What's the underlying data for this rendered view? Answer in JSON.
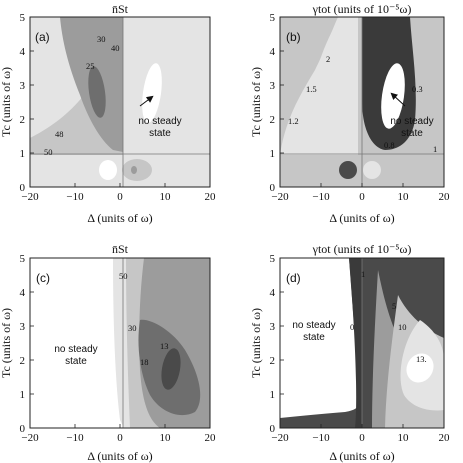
{
  "colors": {
    "c0": "#ffffff",
    "c1": "#e4e4e4",
    "c2": "#c6c6c6",
    "c3": "#9c9c9c",
    "c4": "#6e6e6e",
    "c5": "#4a4a4a",
    "c6": "#3a3a3a"
  },
  "chart_data": [
    {
      "type": "contour",
      "panel_label": "(a)",
      "title": "n̄St",
      "xlabel": "Δ (units of ω)",
      "ylabel": "Tc (units of ω)",
      "xlim": [
        -20,
        20
      ],
      "ylim": [
        0,
        5
      ],
      "xticks": [
        "−20",
        "−10",
        "0",
        "10",
        "20"
      ],
      "yticks": [
        "0",
        "1",
        "2",
        "3",
        "4",
        "5"
      ],
      "contour_labels": [
        {
          "text": "30",
          "x": -7.2,
          "y": 4.55
        },
        {
          "text": "40",
          "x": -3.5,
          "y": 4.3
        },
        {
          "text": "25",
          "x": -6.2,
          "y": 3.35
        },
        {
          "text": "48",
          "x": -15.8,
          "y": 1.5
        },
        {
          "text": "50",
          "x": -17.2,
          "y": 1.1
        }
      ],
      "annotation": "no steady state",
      "annotation_arrow_to": {
        "x": 6.5,
        "y": 3.55
      }
    },
    {
      "type": "contour",
      "panel_label": "(b)",
      "title": "γtot (units of 10⁻⁵ω)",
      "xlabel": "Δ (units of ω)",
      "ylabel": "Tc (units of ω)",
      "xlim": [
        -20,
        20
      ],
      "ylim": [
        0,
        5
      ],
      "xticks": [
        "−20",
        "−10",
        "0",
        "10",
        "20"
      ],
      "yticks": [
        "0",
        "1",
        "2",
        "3",
        "4",
        "5"
      ],
      "contour_labels": [
        {
          "text": "2",
          "x": -7.7,
          "y": 3.95
        },
        {
          "text": "1.5",
          "x": -12.5,
          "y": 3.0
        },
        {
          "text": "1.2",
          "x": -17.0,
          "y": 2.3
        },
        {
          "text": "0.3",
          "x": 12.0,
          "y": 3.05
        },
        {
          "text": "0.8",
          "x": 5.5,
          "y": 1.3
        },
        {
          "text": "1",
          "x": 17.0,
          "y": 1.15
        }
      ],
      "annotation": "no steady state",
      "annotation_arrow_to": {
        "x": 7.0,
        "y": 3.1
      }
    },
    {
      "type": "contour",
      "panel_label": "(c)",
      "title": "n̄St",
      "xlabel": "Δ (units of ω)",
      "ylabel": "Tc (units of ω)",
      "xlim": [
        -20,
        20
      ],
      "ylim": [
        0,
        5
      ],
      "xticks": [
        "−20",
        "−10",
        "0",
        "10",
        "20"
      ],
      "yticks": [
        "0",
        "1",
        "2",
        "3",
        "4",
        "5"
      ],
      "contour_labels": [
        {
          "text": "50",
          "x": 3.0,
          "y": 4.35
        },
        {
          "text": "30",
          "x": 5.0,
          "y": 2.9
        },
        {
          "text": "13",
          "x": 10.2,
          "y": 2.3
        },
        {
          "text": "18",
          "x": 5.6,
          "y": 1.8
        }
      ],
      "annotation": "no steady state"
    },
    {
      "type": "contour",
      "panel_label": "(d)",
      "title": "γtot (units of 10⁻⁵ω)",
      "xlabel": "Δ (units of ω)",
      "ylabel": "Tc (units of ω)",
      "xlim": [
        -20,
        20
      ],
      "ylim": [
        0,
        5
      ],
      "xticks": [
        "−20",
        "−10",
        "0",
        "10",
        "20"
      ],
      "yticks": [
        "0",
        "1",
        "2",
        "3",
        "4",
        "5"
      ],
      "contour_labels": [
        {
          "text": "1",
          "x": 0.2,
          "y": 4.75
        },
        {
          "text": "0",
          "x": -2.5,
          "y": 2.9
        },
        {
          "text": "5",
          "x": 5.6,
          "y": 3.3
        },
        {
          "text": "10",
          "x": 7.3,
          "y": 2.7
        },
        {
          "text": "13.",
          "x": 12.4,
          "y": 1.85
        }
      ],
      "annotation": "no steady state"
    }
  ]
}
